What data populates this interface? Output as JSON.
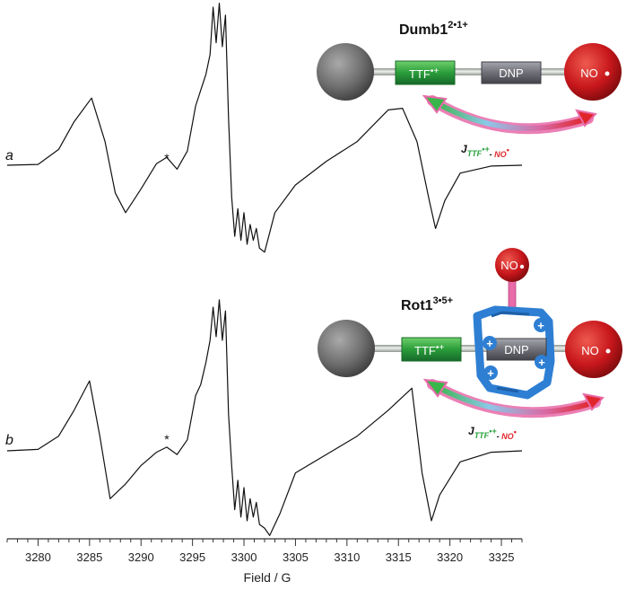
{
  "chart_data": {
    "type": "line",
    "xlabel": "Field / G",
    "xlim": [
      3277,
      3327
    ],
    "xticks": [
      3280,
      3285,
      3290,
      3295,
      3300,
      3305,
      3310,
      3315,
      3320,
      3325
    ],
    "tick_labels": [
      "3280",
      "3285",
      "3290",
      "3295",
      "3300",
      "3305",
      "3310",
      "3315",
      "3320",
      "3325"
    ],
    "series": [
      {
        "trace_label": "a",
        "marker_text": "*",
        "marker_x": 3292.5,
        "x": [
          3277,
          3280,
          3282,
          3283.5,
          3285.2,
          3286.5,
          3287.5,
          3288.5,
          3290,
          3291.5,
          3292.5,
          3293.5,
          3294.5,
          3295.3,
          3295.8,
          3296.3,
          3296.7,
          3297.0,
          3297.3,
          3297.6,
          3297.9,
          3298.2,
          3298.5,
          3298.8,
          3299.1,
          3299.4,
          3299.7,
          3300.0,
          3300.3,
          3300.6,
          3300.9,
          3301.2,
          3301.5,
          3302,
          3303,
          3305,
          3308,
          3311,
          3314,
          3315.4,
          3316.8,
          3318,
          3318.6,
          3319.5,
          3321,
          3324,
          3327
        ],
        "y": [
          0,
          0.01,
          0.2,
          0.55,
          0.85,
          0.3,
          -0.35,
          -0.6,
          -0.3,
          0.02,
          0.1,
          -0.05,
          0.18,
          0.75,
          0.95,
          1.15,
          1.4,
          2.0,
          1.55,
          2.05,
          1.5,
          1.9,
          0.6,
          -0.4,
          -0.9,
          -0.55,
          -0.95,
          -0.6,
          -1.0,
          -0.75,
          -0.95,
          -0.8,
          -1.05,
          -1.1,
          -0.6,
          -0.25,
          0.05,
          0.3,
          0.7,
          0.72,
          0.3,
          -0.45,
          -0.8,
          -0.45,
          -0.1,
          -0.01,
          0
        ]
      },
      {
        "trace_label": "b",
        "marker_text": "*",
        "marker_x": 3292.5,
        "x": [
          3277,
          3280,
          3282,
          3283.5,
          3285.0,
          3286.0,
          3287.0,
          3288.5,
          3290,
          3291.5,
          3292.5,
          3293.5,
          3294.5,
          3295.3,
          3295.8,
          3296.3,
          3296.7,
          3297.0,
          3297.3,
          3297.6,
          3297.9,
          3298.2,
          3298.5,
          3298.8,
          3299.1,
          3299.4,
          3299.7,
          3300.0,
          3300.3,
          3300.6,
          3300.9,
          3301.2,
          3301.5,
          3302,
          3302.5,
          3303.5,
          3305,
          3308,
          3311,
          3314,
          3316.3,
          3317.3,
          3318.2,
          3319,
          3321,
          3324,
          3327
        ],
        "y": [
          0,
          0.02,
          0.2,
          0.55,
          0.95,
          0.2,
          -0.65,
          -0.45,
          -0.2,
          -0.02,
          0.05,
          -0.05,
          0.15,
          0.75,
          0.9,
          1.2,
          1.5,
          1.95,
          1.55,
          2.05,
          1.5,
          1.9,
          0.5,
          -0.2,
          -0.8,
          -0.4,
          -0.9,
          -0.5,
          -0.95,
          -0.65,
          -0.9,
          -0.7,
          -1.0,
          -1.05,
          -1.15,
          -0.85,
          -0.3,
          -0.05,
          0.2,
          0.55,
          0.85,
          -0.3,
          -0.95,
          -0.6,
          -0.15,
          -0.02,
          0
        ]
      }
    ]
  },
  "diagram_top": {
    "title": "Dumb1",
    "title_sup": "2•1+",
    "box_ttf": "TTF",
    "box_ttf_sup": "•+",
    "box_dnp": "DNP",
    "sphere_right": "NO",
    "coupling_j": "J",
    "coupling_sub_ttf": "TTF",
    "coupling_sub_ttf_sup": "•+",
    "coupling_sub_sep": "- ",
    "coupling_sub_no": "NO",
    "coupling_sub_no_sup": "•"
  },
  "diagram_bottom": {
    "title": "Rot1",
    "title_sup": "3•5+",
    "box_ttf": "TTF",
    "box_ttf_sup": "•+",
    "box_dnp": "DNP",
    "sphere_right": "NO",
    "sphere_top": "NO",
    "plus_sign": "+",
    "coupling_j": "J",
    "coupling_sub_ttf": "TTF",
    "coupling_sub_ttf_sup": "•+",
    "coupling_sub_sep": "- ",
    "coupling_sub_no": "NO",
    "coupling_sub_no_sup": "•"
  },
  "colors": {
    "trace": "#111111",
    "sphere_grey": "#6e6e6e",
    "sphere_red": "#c8171c",
    "ttf_green": "#2a9d3a",
    "dnp_grey": "#6f7077",
    "ring_blue": "#2e7fd3",
    "arrow_pink": "#e86aa8",
    "label_green": "#2aa13c",
    "label_red": "#e0262b"
  }
}
